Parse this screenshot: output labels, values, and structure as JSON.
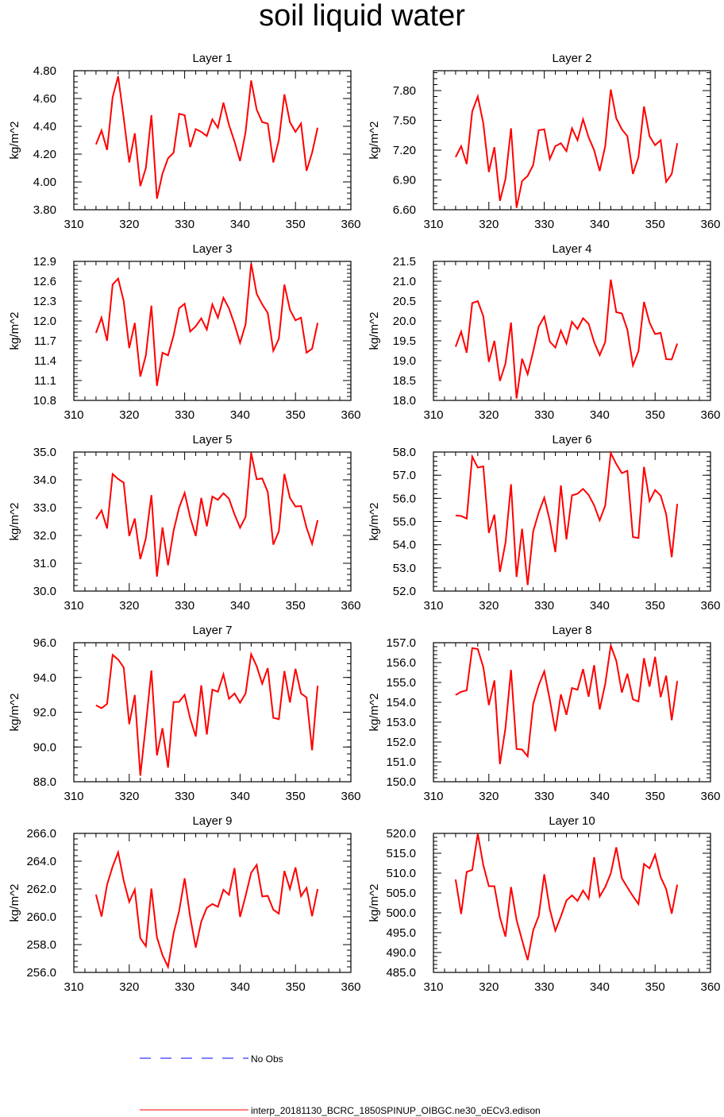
{
  "figure": {
    "title": "soil liquid water",
    "legend": [
      {
        "label": "No Obs",
        "color": "#0000ff",
        "style": "dashed"
      },
      {
        "label": "interp_20181130_BCRC_1850SPINUP_OIBGC.ne30_oECv3.edison",
        "color": "#ff0000",
        "style": "solid"
      }
    ]
  },
  "chart_data": [
    {
      "type": "line",
      "title": "Layer 1",
      "ylabel": "kg/m^2",
      "xlim": [
        310,
        360
      ],
      "xticks": [
        310,
        320,
        330,
        340,
        350,
        360
      ],
      "ylim": [
        3.8,
        4.8
      ],
      "yticks": [
        "3.80",
        "4.00",
        "4.20",
        "4.40",
        "4.60",
        "4.80"
      ],
      "x0": 314,
      "color": "#ff0000",
      "values": [
        4.27,
        4.37,
        4.23,
        4.61,
        4.76,
        4.46,
        4.14,
        4.35,
        3.97,
        4.1,
        4.48,
        3.88,
        4.06,
        4.17,
        4.21,
        4.49,
        4.48,
        4.25,
        4.38,
        4.36,
        4.33,
        4.45,
        4.39,
        4.57,
        4.41,
        4.29,
        4.15,
        4.36,
        4.73,
        4.52,
        4.43,
        4.42,
        4.14,
        4.3,
        4.63,
        4.43,
        4.36,
        4.42,
        4.08,
        4.21,
        4.39
      ]
    },
    {
      "type": "line",
      "title": "Layer 2",
      "ylabel": "kg/m^2",
      "xlim": [
        310,
        360
      ],
      "xticks": [
        310,
        320,
        330,
        340,
        350,
        360
      ],
      "ylim": [
        6.6,
        8.0
      ],
      "yticks": [
        "6.60",
        "6.90",
        "7.20",
        "7.50",
        "7.80"
      ],
      "x0": 314,
      "color": "#ff0000",
      "values": [
        7.13,
        7.24,
        7.06,
        7.59,
        7.74,
        7.47,
        6.98,
        7.23,
        6.69,
        6.91,
        7.42,
        6.62,
        6.89,
        6.94,
        7.05,
        7.4,
        7.41,
        7.11,
        7.24,
        7.27,
        7.19,
        7.42,
        7.3,
        7.51,
        7.33,
        7.2,
        6.99,
        7.24,
        7.81,
        7.52,
        7.41,
        7.34,
        6.96,
        7.13,
        7.64,
        7.34,
        7.25,
        7.3,
        6.88,
        6.96,
        7.27
      ]
    },
    {
      "type": "line",
      "title": "Layer 3",
      "ylabel": "kg/m^2",
      "xlim": [
        310,
        360
      ],
      "xticks": [
        310,
        320,
        330,
        340,
        350,
        360
      ],
      "ylim": [
        10.8,
        12.9
      ],
      "yticks": [
        "10.8",
        "11.1",
        "11.4",
        "11.7",
        "12.0",
        "12.3",
        "12.6",
        "12.9"
      ],
      "x0": 314,
      "color": "#ff0000",
      "values": [
        11.82,
        12.05,
        11.7,
        12.55,
        12.64,
        12.3,
        11.59,
        11.97,
        11.16,
        11.48,
        12.23,
        11.02,
        11.52,
        11.48,
        11.78,
        12.19,
        12.26,
        11.84,
        11.92,
        12.04,
        11.87,
        12.25,
        12.05,
        12.35,
        12.19,
        11.95,
        11.67,
        11.95,
        12.87,
        12.41,
        12.25,
        12.12,
        11.55,
        11.73,
        12.55,
        12.17,
        12.01,
        12.05,
        11.52,
        11.58,
        11.97
      ]
    },
    {
      "type": "line",
      "title": "Layer 4",
      "ylabel": "kg/m^2",
      "xlim": [
        310,
        360
      ],
      "xticks": [
        310,
        320,
        330,
        340,
        350,
        360
      ],
      "ylim": [
        18.0,
        21.5
      ],
      "yticks": [
        "18.0",
        "18.5",
        "19.0",
        "19.5",
        "20.0",
        "20.5",
        "21.0",
        "21.5"
      ],
      "x0": 314,
      "color": "#ff0000",
      "values": [
        19.35,
        19.73,
        19.2,
        20.45,
        20.5,
        20.12,
        18.97,
        19.5,
        18.49,
        18.93,
        19.96,
        18.05,
        19.05,
        18.66,
        19.23,
        19.86,
        20.11,
        19.48,
        19.33,
        19.76,
        19.43,
        19.98,
        19.8,
        20.07,
        19.93,
        19.47,
        19.14,
        19.47,
        21.04,
        20.22,
        20.19,
        19.78,
        18.88,
        19.24,
        20.48,
        19.96,
        19.67,
        19.7,
        19.04,
        19.03,
        19.43
      ]
    },
    {
      "type": "line",
      "title": "Layer 5",
      "ylabel": "kg/m^2",
      "xlim": [
        310,
        360
      ],
      "xticks": [
        310,
        320,
        330,
        340,
        350,
        360
      ],
      "ylim": [
        30.0,
        35.0
      ],
      "yticks": [
        "30.0",
        "31.0",
        "32.0",
        "33.0",
        "34.0",
        "35.0"
      ],
      "x0": 314,
      "color": "#ff0000",
      "values": [
        32.59,
        32.9,
        32.25,
        34.21,
        34.03,
        33.9,
        31.98,
        32.61,
        31.15,
        31.9,
        33.45,
        30.52,
        32.29,
        30.93,
        32.17,
        33.0,
        33.53,
        32.65,
        31.98,
        33.35,
        32.33,
        33.4,
        33.28,
        33.52,
        33.32,
        32.76,
        32.28,
        32.67,
        34.97,
        34.02,
        34.05,
        33.56,
        31.67,
        32.15,
        34.21,
        33.35,
        33.04,
        33.06,
        32.28,
        31.7,
        32.55
      ]
    },
    {
      "type": "line",
      "title": "Layer 6",
      "ylabel": "kg/m^2",
      "xlim": [
        310,
        360
      ],
      "xticks": [
        310,
        320,
        330,
        340,
        350,
        360
      ],
      "ylim": [
        52.0,
        58.0
      ],
      "yticks": [
        "52.0",
        "53.0",
        "54.0",
        "55.0",
        "56.0",
        "57.0",
        "58.0"
      ],
      "x0": 314,
      "color": "#ff0000",
      "values": [
        55.26,
        55.24,
        55.13,
        57.8,
        57.33,
        57.38,
        54.51,
        55.3,
        52.83,
        54.08,
        56.61,
        52.61,
        54.69,
        52.26,
        54.58,
        55.39,
        56.03,
        55.04,
        53.68,
        56.56,
        54.23,
        56.13,
        56.2,
        56.41,
        56.15,
        55.7,
        55.05,
        55.69,
        57.96,
        57.48,
        57.09,
        57.19,
        54.33,
        54.29,
        57.36,
        55.88,
        56.36,
        56.12,
        55.32,
        53.46,
        55.76
      ]
    },
    {
      "type": "line",
      "title": "Layer 7",
      "ylabel": "kg/m^2",
      "xlim": [
        310,
        360
      ],
      "xticks": [
        310,
        320,
        330,
        340,
        350,
        360
      ],
      "ylim": [
        88.0,
        96.0
      ],
      "yticks": [
        "88.0",
        "90.0",
        "92.0",
        "94.0",
        "96.0"
      ],
      "x0": 314,
      "color": "#ff0000",
      "values": [
        92.4,
        92.23,
        92.48,
        95.3,
        95.03,
        94.58,
        91.31,
        92.99,
        88.35,
        91.28,
        94.4,
        89.52,
        91.08,
        88.81,
        92.59,
        92.6,
        93.0,
        91.63,
        90.6,
        93.55,
        90.72,
        93.3,
        93.18,
        94.18,
        92.77,
        93.08,
        92.54,
        93.08,
        95.34,
        94.65,
        93.64,
        94.54,
        91.68,
        91.6,
        94.37,
        92.56,
        94.5,
        93.08,
        92.85,
        89.81,
        93.53
      ]
    },
    {
      "type": "line",
      "title": "Layer 8",
      "ylabel": "kg/m^2",
      "xlim": [
        310,
        360
      ],
      "xticks": [
        310,
        320,
        330,
        340,
        350,
        360
      ],
      "ylim": [
        150.0,
        157.0
      ],
      "yticks": [
        "150.0",
        "151.0",
        "152.0",
        "153.0",
        "154.0",
        "155.0",
        "156.0",
        "157.0"
      ],
      "x0": 314,
      "color": "#ff0000",
      "values": [
        154.37,
        154.53,
        154.6,
        156.73,
        156.68,
        155.77,
        153.86,
        155.1,
        150.89,
        152.71,
        155.63,
        151.65,
        151.62,
        151.28,
        153.92,
        154.86,
        155.56,
        154.13,
        152.54,
        154.4,
        153.37,
        154.72,
        154.63,
        155.67,
        154.28,
        155.87,
        153.64,
        154.92,
        156.86,
        156.09,
        154.49,
        155.44,
        154.15,
        154.04,
        156.22,
        154.79,
        156.29,
        154.26,
        155.34,
        153.1,
        155.07
      ]
    },
    {
      "type": "line",
      "title": "Layer 9",
      "ylabel": "kg/m^2",
      "xlim": [
        310,
        360
      ],
      "xticks": [
        310,
        320,
        330,
        340,
        350,
        360
      ],
      "ylim": [
        256.0,
        266.0
      ],
      "yticks": [
        "256.0",
        "258.0",
        "260.0",
        "262.0",
        "264.0",
        "266.0"
      ],
      "x0": 314,
      "color": "#ff0000",
      "values": [
        261.59,
        260.02,
        262.31,
        263.61,
        264.64,
        262.61,
        261.07,
        261.96,
        258.46,
        257.89,
        262.03,
        258.52,
        257.24,
        256.4,
        258.82,
        260.41,
        262.77,
        259.98,
        257.79,
        259.66,
        260.65,
        260.92,
        260.72,
        261.95,
        261.58,
        263.5,
        259.99,
        261.51,
        263.16,
        263.73,
        261.46,
        261.51,
        260.51,
        260.23,
        263.3,
        262.0,
        263.55,
        261.48,
        262.08,
        260.05,
        262.0
      ]
    },
    {
      "type": "line",
      "title": "Layer 10",
      "ylabel": "kg/m^2",
      "xlim": [
        310,
        360
      ],
      "xticks": [
        310,
        320,
        330,
        340,
        350,
        360
      ],
      "ylim": [
        485.0,
        520.0
      ],
      "yticks": [
        "485.0",
        "490.0",
        "495.0",
        "500.0",
        "505.0",
        "510.0",
        "515.0",
        "520.0"
      ],
      "x0": 314,
      "color": "#ff0000",
      "values": [
        508.4,
        499.7,
        510.3,
        510.8,
        519.9,
        512.0,
        506.7,
        506.7,
        498.9,
        494.0,
        506.5,
        498.2,
        493.1,
        488.1,
        495.6,
        499.2,
        509.7,
        500.9,
        495.5,
        499.1,
        503.1,
        504.4,
        503.0,
        505.6,
        503.5,
        514.0,
        504.1,
        506.5,
        509.9,
        516.5,
        508.7,
        506.4,
        504.2,
        502.2,
        512.3,
        511.2,
        514.6,
        509.0,
        506.0,
        499.8,
        507.1
      ]
    }
  ]
}
